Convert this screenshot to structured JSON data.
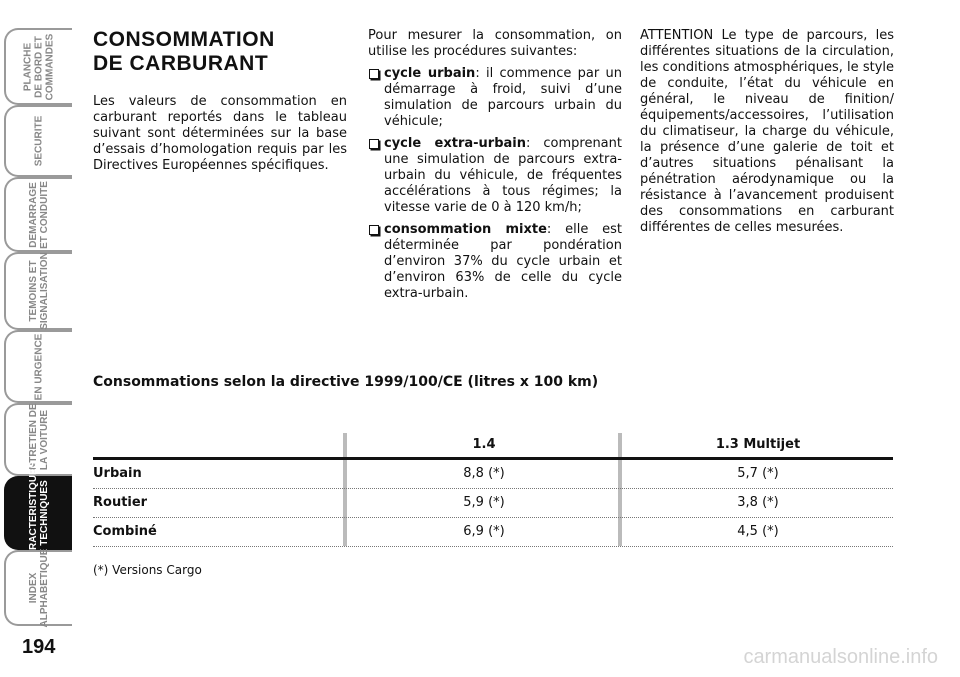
{
  "sidebar": {
    "tabs": [
      {
        "lines": [
          "PLANCHE",
          "DE BORD ET",
          "COMMANDES"
        ]
      },
      {
        "lines": [
          "SECURITE"
        ]
      },
      {
        "lines": [
          "DEMARRAGE",
          "ET CONDUITE"
        ]
      },
      {
        "lines": [
          "TEMOINS ET",
          "SIGNALISATION"
        ]
      },
      {
        "lines": [
          "EN URGENCE"
        ]
      },
      {
        "lines": [
          "ENTRETIEN DE",
          "LA VOITURE"
        ]
      },
      {
        "lines": [
          "CARACTERISTIQUES",
          "TECHNIQUES"
        ]
      },
      {
        "lines": [
          "INDEX",
          "ALPHABETIQUE"
        ]
      }
    ]
  },
  "page_number": "194",
  "title": [
    "CONSOMMATION",
    "DE CARBURANT"
  ],
  "intro": "Les valeurs de consommation en carburant reportés dans le tableau suivant sont déterminées sur la base d’essais d’homologation requis par les Directives Européennes spécifiques.",
  "procedures": {
    "lead": "Pour mesurer la consommation, on utilise les procédures suivantes:",
    "items": [
      {
        "term": "cycle urbain",
        "text": ": il commence par un démarrage à froid, suivi d’une simulation de parcours urbain du véhicule;"
      },
      {
        "term": "cycle extra-urbain",
        "text": ": comprenant une simulation de parcours extra-urbain du véhicule, de fréquentes accélérations à tous régimes; la vitesse varie de 0 à 120 km/h;"
      },
      {
        "term": "consommation mixte",
        "text": ": elle est déterminée par pondération d’environ 37% du cycle urbain et d’environ 63% de celle du cycle extra-urbain."
      }
    ]
  },
  "attention": "ATTENTION Le type de parcours, les différentes situations de la circulation, les conditions atmosphériques, le style de conduite, l’état du véhicule en général, le niveau de finition/équipements/accessoires, l’utilisation du climatiseur, la charge du véhicule, la présence d’une galerie de toit et d’autres situations pénalisant la pénétration aérodynamique ou la résistance à l’avancement produisent des consommations en carburant différentes de celles mesurées.",
  "table": {
    "caption": "Consommations selon la directive 1999/100/CE (litres x 100 km)",
    "columns": [
      "1.4",
      "1.3 Multijet"
    ],
    "rows": [
      {
        "label": "Urbain",
        "values": [
          "8,8 (*)",
          "5,7 (*)"
        ]
      },
      {
        "label": "Routier",
        "values": [
          "5,9 (*)",
          "3,8 (*)"
        ]
      },
      {
        "label": "Combiné",
        "values": [
          "6,9 (*)",
          "4,5 (*)"
        ]
      }
    ],
    "footnote": "(*) Versions Cargo"
  },
  "watermark": "carmanualsonline.info"
}
